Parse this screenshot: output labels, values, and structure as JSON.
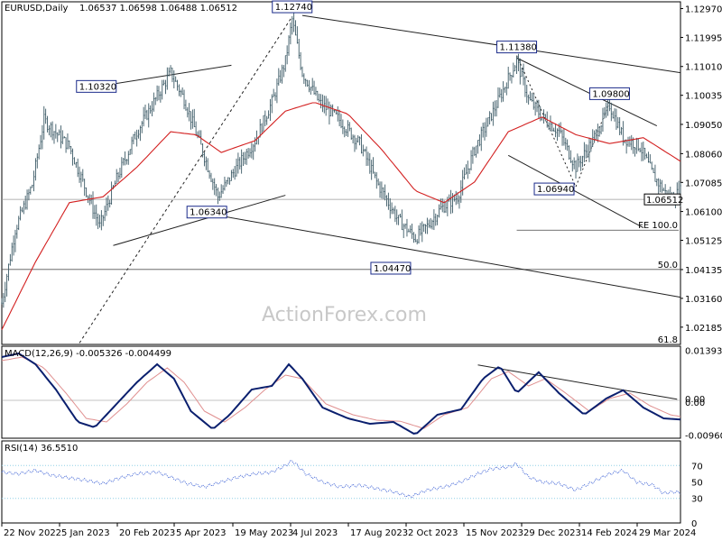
{
  "header": {
    "symbol": "EURUSD,Daily",
    "ohlc": "1.06537 1.06598 1.06488 1.06512"
  },
  "watermark": "ActionForex.com",
  "colors": {
    "candle": "#3c5a66",
    "ema": "#d32020",
    "macd": "#0a1f6e",
    "signal": "#e09090",
    "rsi": "#4a6cd8",
    "trend": "#222222",
    "dots": "#8fd0e6"
  },
  "chart_data": [
    {
      "type": "candlestick",
      "title": "EURUSD,Daily",
      "ylim": [
        1.016,
        1.132
      ],
      "yticks": [
        "1.12970",
        "1.11995",
        "1.11010",
        "1.10035",
        "1.09050",
        "1.08060",
        "1.07085",
        "1.06100",
        "1.05125",
        "1.04135",
        "1.03160",
        "1.02185"
      ],
      "last_price": "1.06512",
      "xticks": [
        "22 Nov 2022",
        "5 Jan 2023",
        "20 Feb 2023",
        "5 Apr 2023",
        "19 May 2023",
        "4 Jul 2023",
        "17 Aug 2023",
        "2 Oct 2023",
        "15 Nov 2023",
        "29 Dec 2023",
        "14 Feb 2024",
        "29 Mar 2024"
      ],
      "series": [
        {
          "values": [
            [
              0,
              1.03
            ],
            [
              8,
              1.055
            ],
            [
              18,
              1.07
            ],
            [
              25,
              1.092
            ],
            [
              33,
              1.087
            ],
            [
              40,
              1.083
            ],
            [
              50,
              1.068
            ],
            [
              58,
              1.056
            ],
            [
              68,
              1.072
            ],
            [
              80,
              1.088
            ],
            [
              92,
              1.1
            ],
            [
              100,
              1.108
            ],
            [
              108,
              1.099
            ],
            [
              118,
              1.083
            ],
            [
              128,
              1.066
            ],
            [
              138,
              1.075
            ],
            [
              150,
              1.085
            ],
            [
              160,
              1.098
            ],
            [
              168,
              1.112
            ],
            [
              172,
              1.126
            ],
            [
              178,
              1.108
            ],
            [
              188,
              1.098
            ],
            [
              200,
              1.092
            ],
            [
              212,
              1.084
            ],
            [
              222,
              1.071
            ],
            [
              235,
              1.058
            ],
            [
              245,
              1.052
            ],
            [
              252,
              1.056
            ],
            [
              260,
              1.062
            ],
            [
              270,
              1.066
            ],
            [
              280,
              1.082
            ],
            [
              292,
              1.096
            ],
            [
              300,
              1.106
            ],
            [
              305,
              1.112
            ],
            [
              312,
              1.099
            ],
            [
              320,
              1.093
            ],
            [
              330,
              1.088
            ],
            [
              340,
              1.076
            ],
            [
              350,
              1.085
            ],
            [
              360,
              1.097
            ],
            [
              368,
              1.086
            ],
            [
              378,
              1.083
            ],
            [
              386,
              1.073
            ],
            [
              396,
              1.065
            ],
            [
              402,
              1.068
            ]
          ]
        },
        {
          "name": "ema",
          "values": [
            [
              0,
              1.021
            ],
            [
              20,
              1.044
            ],
            [
              40,
              1.064
            ],
            [
              60,
              1.066
            ],
            [
              80,
              1.076
            ],
            [
              100,
              1.088
            ],
            [
              115,
              1.087
            ],
            [
              130,
              1.081
            ],
            [
              150,
              1.085
            ],
            [
              168,
              1.095
            ],
            [
              185,
              1.098
            ],
            [
              205,
              1.094
            ],
            [
              225,
              1.082
            ],
            [
              245,
              1.068
            ],
            [
              262,
              1.064
            ],
            [
              280,
              1.071
            ],
            [
              300,
              1.088
            ],
            [
              320,
              1.093
            ],
            [
              340,
              1.087
            ],
            [
              360,
              1.084
            ],
            [
              380,
              1.086
            ],
            [
              402,
              1.078
            ]
          ]
        }
      ],
      "annotations": [
        {
          "text": "1.12740",
          "x": 172,
          "y": 1.1274
        },
        {
          "text": "1.11380",
          "x": 305,
          "y": 1.1138
        },
        {
          "text": "1.10320",
          "x": 56,
          "y": 1.1032
        },
        {
          "text": "1.09800",
          "x": 360,
          "y": 1.098
        },
        {
          "text": "1.06940",
          "x": 340,
          "y": 1.0694
        },
        {
          "text": "1.06340",
          "x": 130,
          "y": 1.0634
        },
        {
          "text": "1.04470",
          "x": 240,
          "y": 1.0447
        }
      ],
      "fib_labels": [
        {
          "text": "FE 100.0",
          "y": 1.0547
        },
        {
          "text": "50.0",
          "y": 1.0414
        },
        {
          "text": "61.8",
          "y": 1.016
        }
      ]
    },
    {
      "type": "line",
      "title": "MACD(12,26,9) -0.005326 -0.004499",
      "ylim": [
        -0.0105,
        0.015
      ],
      "yticks": [
        "0.01393",
        "0.00",
        "0.00",
        "-0.009602"
      ],
      "series": [
        {
          "name": "macd",
          "values": [
            [
              0,
              0.012
            ],
            [
              10,
              0.013
            ],
            [
              20,
              0.01
            ],
            [
              32,
              0.003
            ],
            [
              45,
              -0.006
            ],
            [
              55,
              -0.0075
            ],
            [
              68,
              -0.001
            ],
            [
              80,
              0.005
            ],
            [
              92,
              0.01
            ],
            [
              102,
              0.006
            ],
            [
              112,
              -0.003
            ],
            [
              125,
              -0.008
            ],
            [
              135,
              -0.004
            ],
            [
              148,
              0.003
            ],
            [
              160,
              0.004
            ],
            [
              170,
              0.01
            ],
            [
              178,
              0.006
            ],
            [
              190,
              -0.002
            ],
            [
              205,
              -0.005
            ],
            [
              218,
              -0.0065
            ],
            [
              232,
              -0.006
            ],
            [
              245,
              -0.0095
            ],
            [
              258,
              -0.004
            ],
            [
              272,
              -0.0025
            ],
            [
              285,
              0.006
            ],
            [
              295,
              0.0095
            ],
            [
              305,
              0.002
            ],
            [
              318,
              0.0078
            ],
            [
              330,
              0.002
            ],
            [
              345,
              -0.004
            ],
            [
              358,
              0.0005
            ],
            [
              368,
              0.0028
            ],
            [
              380,
              -0.002
            ],
            [
              392,
              -0.005
            ],
            [
              402,
              -0.0053
            ]
          ]
        },
        {
          "name": "signal",
          "values": [
            [
              0,
              0.011
            ],
            [
              12,
              0.012
            ],
            [
              25,
              0.009
            ],
            [
              38,
              0.002
            ],
            [
              50,
              -0.005
            ],
            [
              62,
              -0.006
            ],
            [
              74,
              -0.001
            ],
            [
              86,
              0.005
            ],
            [
              98,
              0.009
            ],
            [
              108,
              0.005
            ],
            [
              120,
              -0.003
            ],
            [
              132,
              -0.006
            ],
            [
              144,
              -0.002
            ],
            [
              156,
              0.003
            ],
            [
              168,
              0.007
            ],
            [
              178,
              0.006
            ],
            [
              192,
              -0.001
            ],
            [
              208,
              -0.004
            ],
            [
              222,
              -0.0055
            ],
            [
              236,
              -0.0058
            ],
            [
              250,
              -0.0078
            ],
            [
              262,
              -0.004
            ],
            [
              276,
              -0.002
            ],
            [
              290,
              0.006
            ],
            [
              300,
              0.008
            ],
            [
              312,
              0.004
            ],
            [
              322,
              0.006
            ],
            [
              334,
              0.002
            ],
            [
              348,
              -0.003
            ],
            [
              360,
              0.0005
            ],
            [
              372,
              0.002
            ],
            [
              384,
              -0.0015
            ],
            [
              396,
              -0.004
            ],
            [
              402,
              -0.0045
            ]
          ]
        }
      ]
    },
    {
      "type": "line",
      "title": "RSI(14) 36.5510",
      "ylim": [
        0,
        100
      ],
      "yticks": [
        "70",
        "50",
        "30",
        "0"
      ],
      "series": [
        {
          "name": "rsi",
          "values": [
            [
              0,
              62
            ],
            [
              10,
              60
            ],
            [
              20,
              64
            ],
            [
              30,
              58
            ],
            [
              40,
              55
            ],
            [
              50,
              52
            ],
            [
              60,
              48
            ],
            [
              70,
              55
            ],
            [
              80,
              60
            ],
            [
              92,
              62
            ],
            [
              100,
              56
            ],
            [
              110,
              48
            ],
            [
              120,
              44
            ],
            [
              130,
              50
            ],
            [
              140,
              56
            ],
            [
              150,
              60
            ],
            [
              160,
              62
            ],
            [
              168,
              70
            ],
            [
              172,
              76
            ],
            [
              180,
              60
            ],
            [
              190,
              50
            ],
            [
              200,
              44
            ],
            [
              212,
              46
            ],
            [
              222,
              42
            ],
            [
              232,
              38
            ],
            [
              242,
              32
            ],
            [
              252,
              40
            ],
            [
              262,
              44
            ],
            [
              272,
              50
            ],
            [
              282,
              60
            ],
            [
              290,
              66
            ],
            [
              300,
              68
            ],
            [
              305,
              72
            ],
            [
              312,
              56
            ],
            [
              320,
              50
            ],
            [
              330,
              48
            ],
            [
              340,
              40
            ],
            [
              350,
              50
            ],
            [
              360,
              60
            ],
            [
              368,
              64
            ],
            [
              376,
              50
            ],
            [
              386,
              46
            ],
            [
              392,
              36
            ],
            [
              398,
              38
            ],
            [
              402,
              37
            ]
          ]
        }
      ]
    }
  ]
}
